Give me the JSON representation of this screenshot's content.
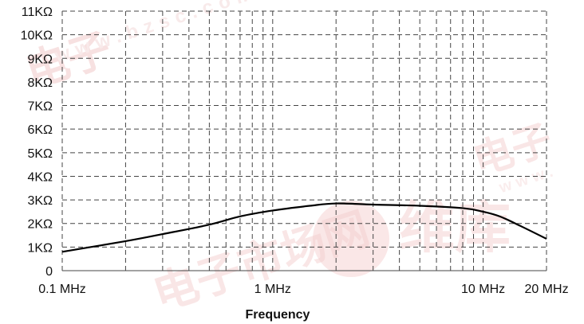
{
  "chart_data": {
    "type": "line",
    "xscale": "log",
    "xlabel": "Frequency",
    "ylabel": "",
    "title": "",
    "xlim": [
      0.1,
      20
    ],
    "ylim": [
      0,
      11
    ],
    "grid": true,
    "grid_style": "dashed",
    "x_ticks": [
      {
        "value": 0.1,
        "label": "0.1 MHz"
      },
      {
        "value": 1,
        "label": "1 MHz"
      },
      {
        "value": 10,
        "label": "10 MHz"
      },
      {
        "value": 20,
        "label": "20 MHz"
      }
    ],
    "y_ticks": [
      {
        "value": 0,
        "label": "0"
      },
      {
        "value": 1,
        "label": "1KΩ"
      },
      {
        "value": 2,
        "label": "2KΩ"
      },
      {
        "value": 3,
        "label": "3KΩ"
      },
      {
        "value": 4,
        "label": "4KΩ"
      },
      {
        "value": 5,
        "label": "5KΩ"
      },
      {
        "value": 6,
        "label": "6KΩ"
      },
      {
        "value": 7,
        "label": "7KΩ"
      },
      {
        "value": 8,
        "label": "8KΩ"
      },
      {
        "value": 9,
        "label": "9KΩ"
      },
      {
        "value": 10,
        "label": "10KΩ"
      },
      {
        "value": 11,
        "label": "11KΩ"
      }
    ],
    "series": [
      {
        "color": "#000000",
        "x": [
          0.1,
          0.2,
          0.3,
          0.5,
          0.7,
          1,
          1.5,
          2,
          3,
          5,
          8,
          10,
          12,
          15,
          20
        ],
        "y": [
          0.8,
          1.25,
          1.55,
          1.95,
          2.3,
          2.55,
          2.75,
          2.85,
          2.8,
          2.75,
          2.65,
          2.5,
          2.3,
          1.9,
          1.35
        ]
      }
    ]
  },
  "colors": {
    "grid": "#444444",
    "line": "#000000",
    "watermark": "#f6d4d4"
  }
}
